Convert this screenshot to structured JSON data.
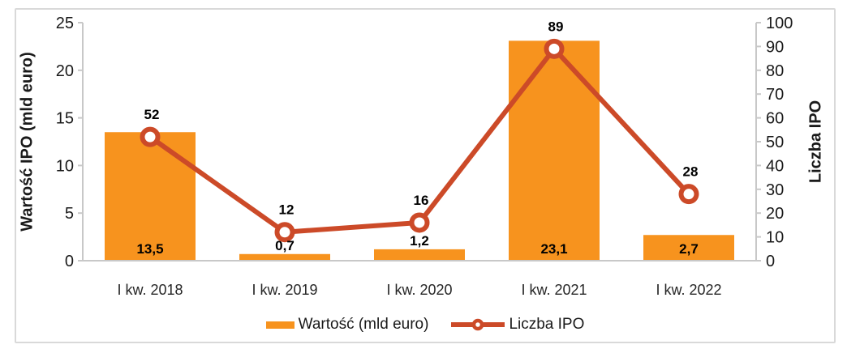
{
  "window": {
    "background": "#ffffff",
    "frame_border_color": "#d9d9d9"
  },
  "chart_data": {
    "type": "bar",
    "subtype": "combo-bar-line-dual-axis",
    "title": "",
    "categories": [
      "I kw. 2018",
      "I kw. 2019",
      "I kw. 2020",
      "I kw. 2021",
      "I kw. 2022"
    ],
    "series": [
      {
        "name": "Wartość (mld euro)",
        "chart": "bar",
        "axis": "left",
        "values": [
          13.5,
          0.7,
          1.2,
          23.1,
          2.7
        ],
        "value_labels": [
          "13,5",
          "0,7",
          "1,2",
          "23,1",
          "2,7"
        ],
        "color": "#F7931E"
      },
      {
        "name": "Liczba IPO",
        "chart": "line",
        "axis": "right",
        "values": [
          52,
          12,
          16,
          89,
          28
        ],
        "value_labels": [
          "52",
          "12",
          "16",
          "89",
          "28"
        ],
        "color": "#CC4A28",
        "marker": "open-circle"
      }
    ],
    "left_axis": {
      "title": "Wartość IPO (mld euro)",
      "min": 0,
      "max": 25,
      "step": 5,
      "tick_labels": [
        "0",
        "5",
        "10",
        "15",
        "20",
        "25"
      ]
    },
    "right_axis": {
      "title": "Liczba IPO",
      "min": 0,
      "max": 100,
      "step": 10,
      "tick_labels": [
        "0",
        "10",
        "20",
        "30",
        "40",
        "50",
        "60",
        "70",
        "80",
        "90",
        "100"
      ]
    },
    "x_axis": {
      "tick_labels": [
        "I kw. 2018",
        "I kw. 2019",
        "I kw. 2020",
        "I kw. 2021",
        "I kw. 2022"
      ]
    },
    "legend": {
      "position": "bottom",
      "entries": [
        "Wartość (mld euro)",
        "Liczba IPO"
      ]
    },
    "grid": false,
    "axis_line_color": "#C8C8C8",
    "text_color": "#1a1a1a",
    "data_label_color": "#000000"
  }
}
